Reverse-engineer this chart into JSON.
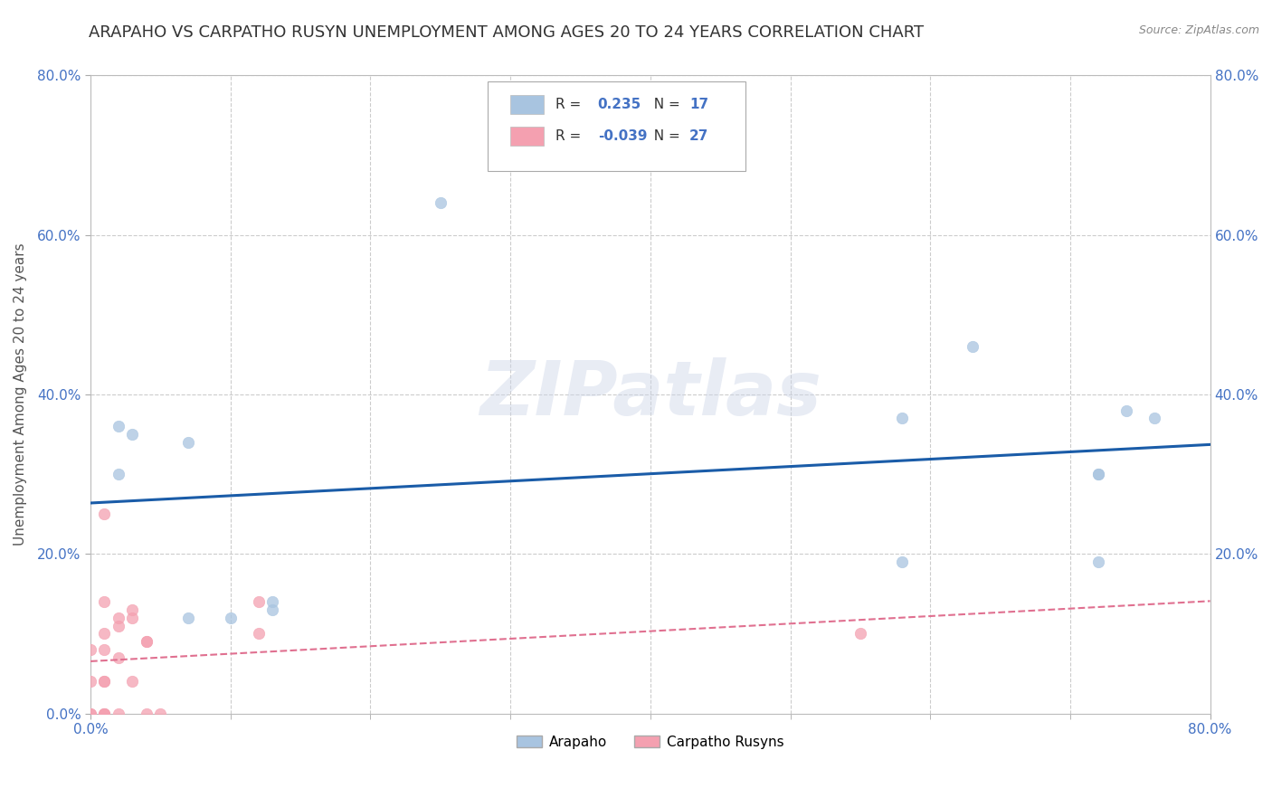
{
  "title": "ARAPAHO VS CARPATHO RUSYN UNEMPLOYMENT AMONG AGES 20 TO 24 YEARS CORRELATION CHART",
  "source": "Source: ZipAtlas.com",
  "ylabel": "Unemployment Among Ages 20 to 24 years",
  "xlim": [
    0,
    0.8
  ],
  "ylim": [
    0,
    0.8
  ],
  "yticks": [
    0.0,
    0.2,
    0.4,
    0.6,
    0.8
  ],
  "ytick_labels": [
    "0.0%",
    "20.0%",
    "40.0%",
    "60.0%",
    "80.0%"
  ],
  "arapaho_color": "#a8c4e0",
  "carpatho_color": "#f4a0b0",
  "arapaho_line_color": "#1a5ca8",
  "carpatho_line_color": "#e07090",
  "legend_R_arapaho": "0.235",
  "legend_N_arapaho": "17",
  "legend_R_carpatho": "-0.039",
  "legend_N_carpatho": "27",
  "watermark": "ZIPatlas",
  "background_color": "#ffffff",
  "grid_color": "#cccccc",
  "arapaho_x": [
    0.02,
    0.02,
    0.03,
    0.07,
    0.07,
    0.1,
    0.13,
    0.13,
    0.25,
    0.58,
    0.58,
    0.63,
    0.72,
    0.72,
    0.72,
    0.74,
    0.76
  ],
  "arapaho_y": [
    0.3,
    0.36,
    0.35,
    0.34,
    0.12,
    0.12,
    0.14,
    0.13,
    0.64,
    0.37,
    0.19,
    0.46,
    0.19,
    0.3,
    0.3,
    0.38,
    0.37
  ],
  "carpatho_x": [
    0.0,
    0.0,
    0.0,
    0.0,
    0.01,
    0.01,
    0.01,
    0.01,
    0.01,
    0.01,
    0.01,
    0.01,
    0.01,
    0.02,
    0.02,
    0.02,
    0.02,
    0.03,
    0.03,
    0.03,
    0.04,
    0.04,
    0.04,
    0.05,
    0.12,
    0.12,
    0.55
  ],
  "carpatho_y": [
    0.0,
    0.0,
    0.04,
    0.08,
    0.0,
    0.0,
    0.0,
    0.04,
    0.04,
    0.08,
    0.1,
    0.14,
    0.25,
    0.0,
    0.07,
    0.11,
    0.12,
    0.04,
    0.12,
    0.13,
    0.0,
    0.09,
    0.09,
    0.0,
    0.1,
    0.14,
    0.1
  ],
  "marker_size": 80,
  "title_fontsize": 13,
  "label_fontsize": 11,
  "tick_fontsize": 11,
  "tick_color": "#4472c4",
  "legend_text_color": "#333333",
  "legend_value_color": "#4472c4"
}
